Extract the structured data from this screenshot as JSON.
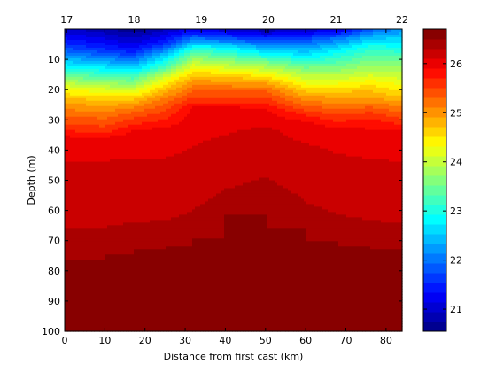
{
  "chart_data": {
    "type": "heatmap",
    "subtype": "filled-contour",
    "xlabel": "Distance from first cast (km)",
    "ylabel": "Depth (m)",
    "xlim": [
      0,
      84
    ],
    "ylim": [
      0,
      100
    ],
    "y_reversed": true,
    "x_ticks": [
      0,
      10,
      20,
      30,
      40,
      50,
      60,
      70,
      80
    ],
    "y_ticks": [
      10,
      20,
      30,
      40,
      50,
      60,
      70,
      80,
      90,
      100
    ],
    "secondary_x_axis": {
      "position": "top",
      "ticks": [
        {
          "label": "17",
          "x": 0.5
        },
        {
          "label": "18",
          "x": 17.3
        },
        {
          "label": "19",
          "x": 34.0
        },
        {
          "label": "20",
          "x": 50.7
        },
        {
          "label": "21",
          "x": 67.6
        },
        {
          "label": "22",
          "x": 84.0
        }
      ]
    },
    "colorbar": {
      "colormap": "jet",
      "range": [
        20.55,
        26.7
      ],
      "ticks": [
        21,
        22,
        23,
        24,
        25,
        26
      ]
    },
    "level_step": 0.2,
    "field_samples": [
      {
        "x": 0,
        "d_to_z": [
          [
            0,
            21.0
          ],
          [
            6,
            21.7
          ],
          [
            11,
            22.6
          ],
          [
            15,
            23.4
          ],
          [
            19,
            24.2
          ],
          [
            23,
            24.8
          ],
          [
            28,
            25.3
          ],
          [
            33,
            25.7
          ],
          [
            36,
            26.0
          ],
          [
            46,
            26.2
          ],
          [
            73,
            26.4
          ],
          [
            76,
            26.55
          ],
          [
            100,
            26.55
          ]
        ]
      },
      {
        "x": 10,
        "d_to_z": [
          [
            0,
            20.8
          ],
          [
            7,
            21.6
          ],
          [
            12,
            22.6
          ],
          [
            16,
            23.4
          ],
          [
            20,
            24.2
          ],
          [
            24,
            24.8
          ],
          [
            29,
            25.3
          ],
          [
            34,
            25.7
          ],
          [
            36,
            26.0
          ],
          [
            46,
            26.2
          ],
          [
            72,
            26.4
          ],
          [
            75,
            26.55
          ],
          [
            100,
            26.55
          ]
        ]
      },
      {
        "x": 17,
        "d_to_z": [
          [
            0,
            20.6
          ],
          [
            7,
            21.4
          ],
          [
            12,
            22.4
          ],
          [
            16,
            23.3
          ],
          [
            20,
            24.1
          ],
          [
            23,
            24.7
          ],
          [
            27,
            25.3
          ],
          [
            31,
            25.7
          ],
          [
            34,
            26.0
          ],
          [
            46,
            26.2
          ],
          [
            70,
            26.4
          ],
          [
            73,
            26.55
          ],
          [
            100,
            26.55
          ]
        ]
      },
      {
        "x": 25,
        "d_to_z": [
          [
            0,
            20.9
          ],
          [
            5,
            21.6
          ],
          [
            9,
            22.6
          ],
          [
            13,
            23.4
          ],
          [
            16,
            24.2
          ],
          [
            20,
            24.8
          ],
          [
            24,
            25.3
          ],
          [
            29,
            25.7
          ],
          [
            33,
            26.0
          ],
          [
            46,
            26.2
          ],
          [
            69,
            26.4
          ],
          [
            72,
            26.55
          ],
          [
            100,
            26.55
          ]
        ]
      },
      {
        "x": 32,
        "d_to_z": [
          [
            0,
            21.2
          ],
          [
            3,
            22.0
          ],
          [
            6,
            22.9
          ],
          [
            9,
            23.6
          ],
          [
            12,
            24.2
          ],
          [
            15,
            24.7
          ],
          [
            19,
            25.2
          ],
          [
            23,
            25.6
          ],
          [
            26,
            26.0
          ],
          [
            43,
            26.2
          ],
          [
            66,
            26.4
          ],
          [
            69,
            26.55
          ],
          [
            100,
            26.55
          ]
        ]
      },
      {
        "x": 40,
        "d_to_z": [
          [
            0,
            21.0
          ],
          [
            3,
            21.8
          ],
          [
            6,
            22.8
          ],
          [
            10,
            23.6
          ],
          [
            13,
            24.2
          ],
          [
            16,
            24.8
          ],
          [
            20,
            25.3
          ],
          [
            24,
            25.7
          ],
          [
            26,
            26.0
          ],
          [
            38,
            26.2
          ],
          [
            58,
            26.4
          ],
          [
            61,
            26.55
          ],
          [
            100,
            26.55
          ]
        ]
      },
      {
        "x": 50,
        "d_to_z": [
          [
            0,
            20.8
          ],
          [
            4,
            21.8
          ],
          [
            8,
            22.8
          ],
          [
            11,
            23.6
          ],
          [
            14,
            24.2
          ],
          [
            17,
            24.8
          ],
          [
            20,
            25.3
          ],
          [
            24,
            25.7
          ],
          [
            27,
            26.0
          ],
          [
            34,
            26.2
          ],
          [
            54,
            26.4
          ],
          [
            57,
            26.55
          ],
          [
            100,
            26.55
          ]
        ]
      },
      {
        "x": 60,
        "d_to_z": [
          [
            0,
            21.0
          ],
          [
            4,
            21.9
          ],
          [
            9,
            22.8
          ],
          [
            13,
            23.6
          ],
          [
            17,
            24.2
          ],
          [
            21,
            24.8
          ],
          [
            25,
            25.3
          ],
          [
            28,
            25.7
          ],
          [
            31,
            26.0
          ],
          [
            40,
            26.2
          ],
          [
            63,
            26.4
          ],
          [
            66,
            26.55
          ],
          [
            100,
            26.55
          ]
        ]
      },
      {
        "x": 68,
        "d_to_z": [
          [
            0,
            21.1
          ],
          [
            3,
            22.0
          ],
          [
            7,
            22.8
          ],
          [
            12,
            23.5
          ],
          [
            17,
            24.2
          ],
          [
            21,
            24.8
          ],
          [
            26,
            25.3
          ],
          [
            30,
            25.7
          ],
          [
            33,
            26.0
          ],
          [
            44,
            26.2
          ],
          [
            67,
            26.4
          ],
          [
            70,
            26.55
          ],
          [
            100,
            26.55
          ]
        ]
      },
      {
        "x": 76,
        "d_to_z": [
          [
            0,
            21.8
          ],
          [
            2,
            22.3
          ],
          [
            5,
            22.9
          ],
          [
            9,
            23.4
          ],
          [
            14,
            24.0
          ],
          [
            19,
            24.6
          ],
          [
            23,
            25.0
          ],
          [
            27,
            25.5
          ],
          [
            30,
            25.8
          ],
          [
            34,
            26.0
          ],
          [
            46,
            26.2
          ],
          [
            69,
            26.4
          ],
          [
            72,
            26.55
          ],
          [
            100,
            26.55
          ]
        ]
      },
      {
        "x": 84,
        "d_to_z": [
          [
            0,
            22.2
          ],
          [
            4,
            22.7
          ],
          [
            8,
            23.2
          ],
          [
            12,
            23.7
          ],
          [
            17,
            24.2
          ],
          [
            22,
            24.7
          ],
          [
            26,
            25.2
          ],
          [
            30,
            25.6
          ],
          [
            34,
            26.0
          ],
          [
            47,
            26.2
          ],
          [
            70,
            26.4
          ],
          [
            73,
            26.55
          ],
          [
            100,
            26.55
          ]
        ]
      }
    ]
  }
}
